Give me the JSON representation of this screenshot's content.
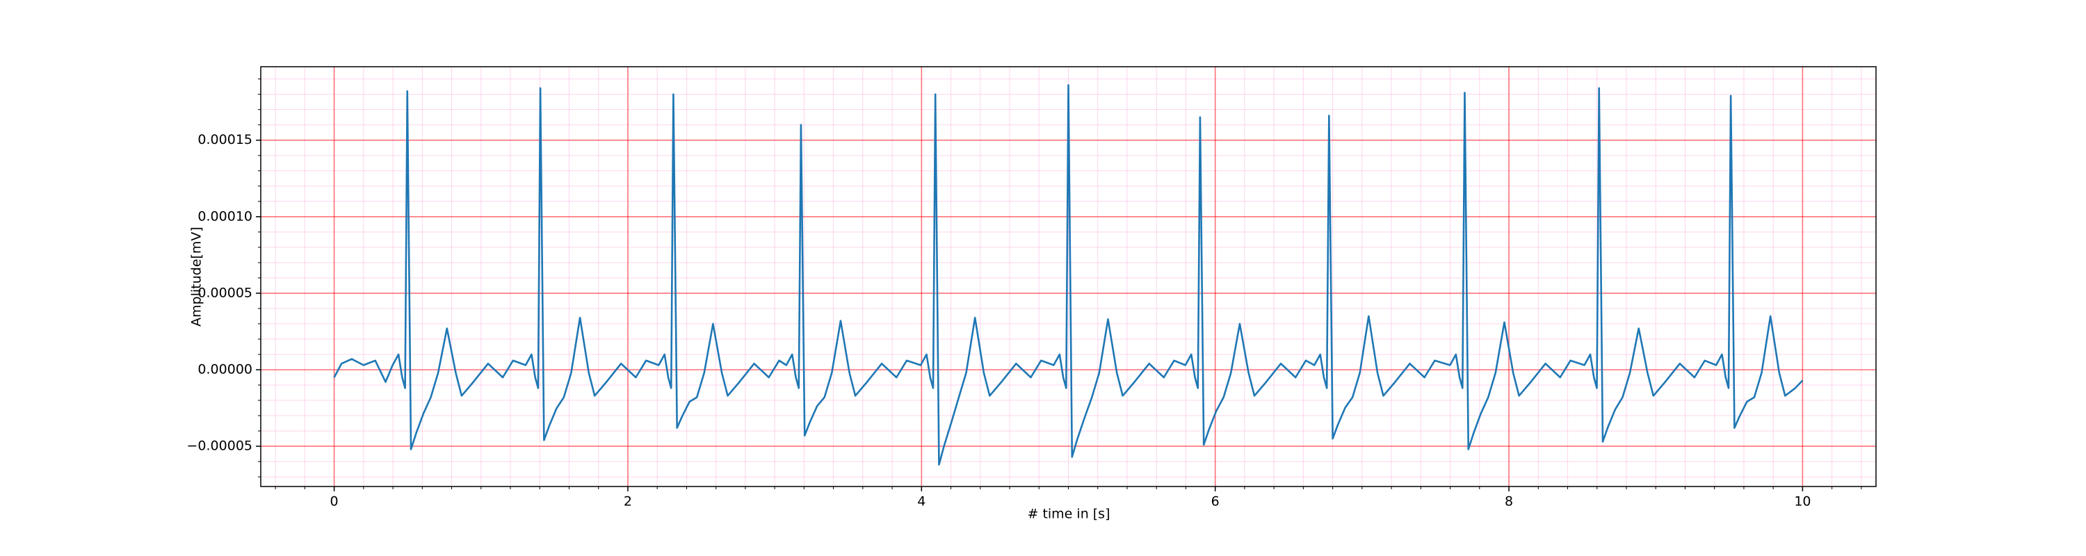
{
  "chart_data": {
    "type": "line",
    "xlabel": "# time in [s]",
    "ylabel": "Amplitude[mV]",
    "color": "#1f77b4",
    "xlim": [
      -0.5,
      10.5
    ],
    "ylim": [
      -7.63e-05,
      0.000198
    ],
    "xticks": [
      0,
      2,
      4,
      6,
      8,
      10
    ],
    "yticks": [
      {
        "value": -5e-05,
        "label": "−0.00005"
      },
      {
        "value": 0,
        "label": "0.00000"
      },
      {
        "value": 5e-05,
        "label": "0.00005"
      },
      {
        "value": 0.0001,
        "label": "0.00010"
      },
      {
        "value": 0.00015,
        "label": "0.00015"
      }
    ],
    "grid": true,
    "grid_color": "#ff0000",
    "minor_grid": {
      "x_step": 0.2,
      "y_step": 1e-05,
      "color": "#ff88cc"
    },
    "x": [
      0,
      0.05,
      0.12,
      0.2,
      0.28,
      0.35,
      0.398,
      0.438,
      0.463,
      0.483,
      0.498,
      0.523,
      0.558,
      0.608,
      0.658,
      0.708,
      0.768,
      0.828,
      0.868,
      0.948,
      1.048,
      1.148,
      1.218,
      1.304,
      1.344,
      1.369,
      1.389,
      1.404,
      1.429,
      1.464,
      1.514,
      1.564,
      1.614,
      1.674,
      1.734,
      1.774,
      1.854,
      1.954,
      2.054,
      2.124,
      2.21,
      2.25,
      2.275,
      2.295,
      2.31,
      2.335,
      2.37,
      2.42,
      2.47,
      2.52,
      2.58,
      2.64,
      2.68,
      2.76,
      2.86,
      2.96,
      3.03,
      3.079,
      3.119,
      3.144,
      3.164,
      3.179,
      3.204,
      3.239,
      3.289,
      3.339,
      3.389,
      3.449,
      3.509,
      3.549,
      3.629,
      3.729,
      3.829,
      3.899,
      3.994,
      4.034,
      4.059,
      4.079,
      4.094,
      4.119,
      4.154,
      4.204,
      4.254,
      4.304,
      4.364,
      4.424,
      4.464,
      4.544,
      4.644,
      4.744,
      4.814,
      4.9,
      4.94,
      4.965,
      4.985,
      5,
      5.025,
      5.06,
      5.11,
      5.16,
      5.21,
      5.27,
      5.33,
      5.37,
      5.45,
      5.55,
      5.65,
      5.72,
      5.797,
      5.837,
      5.862,
      5.882,
      5.897,
      5.922,
      5.957,
      6.007,
      6.057,
      6.107,
      6.167,
      6.227,
      6.267,
      6.347,
      6.447,
      6.547,
      6.617,
      6.675,
      6.715,
      6.74,
      6.76,
      6.775,
      6.8,
      6.835,
      6.885,
      6.935,
      6.985,
      7.045,
      7.105,
      7.145,
      7.225,
      7.325,
      7.425,
      7.495,
      7.599,
      7.639,
      7.664,
      7.684,
      7.699,
      7.724,
      7.759,
      7.809,
      7.859,
      7.909,
      7.969,
      8.029,
      8.069,
      8.149,
      8.249,
      8.349,
      8.419,
      8.514,
      8.554,
      8.579,
      8.599,
      8.614,
      8.639,
      8.674,
      8.724,
      8.774,
      8.824,
      8.884,
      8.944,
      8.984,
      9.064,
      9.164,
      9.264,
      9.334,
      9.411,
      9.451,
      9.476,
      9.496,
      9.511,
      9.536,
      9.571,
      9.621,
      9.671,
      9.721,
      9.781,
      9.841,
      9.881,
      9.95,
      10
    ],
    "values": [
      -5e-06,
      4e-06,
      7e-06,
      3e-06,
      6e-06,
      -8e-06,
      3e-06,
      1e-05,
      -5e-06,
      -1.2e-05,
      0.000182,
      -5.2e-05,
      -4.16e-05,
      -2.86e-05,
      -1.8e-05,
      -2e-06,
      2.7e-05,
      -2e-06,
      -1.7e-05,
      -8e-06,
      4e-06,
      -5e-06,
      6e-06,
      3e-06,
      1e-05,
      -5e-06,
      -1.2e-05,
      0.000184,
      -4.6e-05,
      -3.68e-05,
      -2.53e-05,
      -1.8e-05,
      -2e-06,
      3.4e-05,
      -2e-06,
      -1.7e-05,
      -8e-06,
      4e-06,
      -5e-06,
      6e-06,
      3e-06,
      1e-05,
      -5e-06,
      -1.2e-05,
      0.00018,
      -3.8e-05,
      -3.04e-05,
      -2.09e-05,
      -1.8e-05,
      -2e-06,
      3e-05,
      -2e-06,
      -1.7e-05,
      -8e-06,
      4e-06,
      -5e-06,
      6e-06,
      3e-06,
      1e-05,
      -5e-06,
      -1.2e-05,
      0.00016,
      -4.3e-05,
      -3.44e-05,
      -2.37e-05,
      -1.8e-05,
      -2e-06,
      3.2e-05,
      -2e-06,
      -1.7e-05,
      -8e-06,
      4e-06,
      -5e-06,
      6e-06,
      3e-06,
      1e-05,
      -5e-06,
      -1.2e-05,
      0.00018,
      -6.2e-05,
      -4.96e-05,
      -3.41e-05,
      -1.8e-05,
      -2e-06,
      3.4e-05,
      -2e-06,
      -1.7e-05,
      -8e-06,
      4e-06,
      -5e-06,
      6e-06,
      3e-06,
      1e-05,
      -5e-06,
      -1.2e-05,
      0.000186,
      -5.7e-05,
      -4.56e-05,
      -3.14e-05,
      -1.8e-05,
      -2e-06,
      3.3e-05,
      -2e-06,
      -1.7e-05,
      -8e-06,
      4e-06,
      -5e-06,
      6e-06,
      3e-06,
      1e-05,
      -5e-06,
      -1.2e-05,
      0.000165,
      -4.9e-05,
      -3.92e-05,
      -2.7e-05,
      -1.8e-05,
      -2e-06,
      3e-05,
      -2e-06,
      -1.7e-05,
      -8e-06,
      4e-06,
      -5e-06,
      6e-06,
      3e-06,
      1e-05,
      -5e-06,
      -1.2e-05,
      0.000166,
      -4.5e-05,
      -3.6e-05,
      -2.48e-05,
      -1.8e-05,
      -2e-06,
      3.5e-05,
      -2e-06,
      -1.7e-05,
      -8e-06,
      4e-06,
      -5e-06,
      6e-06,
      3e-06,
      1e-05,
      -5e-06,
      -1.2e-05,
      0.000181,
      -5.2e-05,
      -4.16e-05,
      -2.86e-05,
      -1.8e-05,
      -2e-06,
      3.1e-05,
      -2e-06,
      -1.7e-05,
      -8e-06,
      4e-06,
      -5e-06,
      6e-06,
      3e-06,
      1e-05,
      -5e-06,
      -1.2e-05,
      0.000184,
      -4.7e-05,
      -3.76e-05,
      -2.59e-05,
      -1.8e-05,
      -2e-06,
      2.7e-05,
      -2e-06,
      -1.7e-05,
      -8e-06,
      4e-06,
      -5e-06,
      6e-06,
      3e-06,
      1e-05,
      -5e-06,
      -1.2e-05,
      0.000179,
      -3.8e-05,
      -3.04e-05,
      -2.09e-05,
      -1.8e-05,
      -2e-06,
      3.5e-05,
      -2e-06,
      -1.7e-05,
      -1.2e-05,
      -7e-06
    ]
  }
}
